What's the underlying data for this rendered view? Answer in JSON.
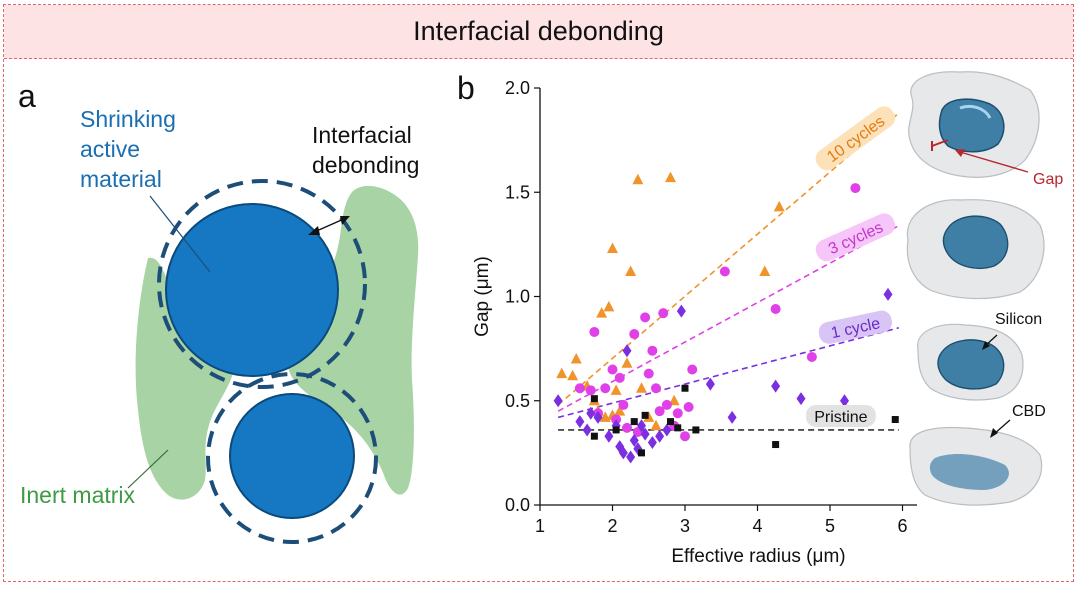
{
  "title": "Interfacial debonding",
  "panel_a": {
    "letter": "a",
    "label_active": [
      "Shrinking",
      "active",
      "material"
    ],
    "label_debond": [
      "Interfacial",
      "debonding"
    ],
    "label_matrix": "Inert matrix",
    "colors": {
      "active": "#1678c2",
      "active_stroke": "#0b4a7c",
      "matrix": "#a8d3a4",
      "dash": "#1d4e7a",
      "matrix_text": "#3e9a45",
      "active_text": "#1a6fb2"
    }
  },
  "panel_b": {
    "letter": "b",
    "side_labels": {
      "gap": "Gap",
      "silicon": "Silicon",
      "cbd": "CBD"
    },
    "gap_label_color": "#b8272e"
  },
  "chart_data": {
    "type": "scatter",
    "xlabel": "Effective radius (μm)",
    "ylabel": "Gap (μm)",
    "xlim": [
      1,
      6.2
    ],
    "ylim": [
      0,
      2.0
    ],
    "xticks": [
      "1",
      "2",
      "3",
      "4",
      "5",
      "6"
    ],
    "yticks": [
      "0.0",
      "0.5",
      "1.0",
      "1.5",
      "2.0"
    ],
    "grid": false,
    "series": [
      {
        "name": "10 cycles",
        "marker": "triangle",
        "color": "#f0932b",
        "fit": [
          [
            1.25,
            0.48
          ],
          [
            5.95,
            1.88
          ]
        ],
        "points": [
          [
            1.3,
            0.63
          ],
          [
            1.45,
            0.62
          ],
          [
            1.5,
            0.7
          ],
          [
            1.65,
            0.57
          ],
          [
            1.75,
            0.5
          ],
          [
            1.8,
            0.45
          ],
          [
            1.85,
            0.92
          ],
          [
            1.9,
            0.42
          ],
          [
            1.95,
            0.95
          ],
          [
            2.0,
            1.23
          ],
          [
            2.05,
            0.55
          ],
          [
            2.1,
            0.45
          ],
          [
            2.2,
            0.68
          ],
          [
            2.25,
            1.12
          ],
          [
            2.35,
            1.56
          ],
          [
            2.4,
            0.56
          ],
          [
            2.5,
            0.42
          ],
          [
            2.6,
            0.38
          ],
          [
            2.8,
            1.57
          ],
          [
            2.85,
            0.5
          ],
          [
            4.1,
            1.12
          ],
          [
            4.3,
            1.43
          ],
          [
            2.0,
            0.43
          ]
        ]
      },
      {
        "name": "3 cycles",
        "marker": "circle",
        "color": "#e040e8",
        "fit": [
          [
            1.25,
            0.45
          ],
          [
            5.95,
            1.34
          ]
        ],
        "points": [
          [
            1.55,
            0.56
          ],
          [
            1.7,
            0.55
          ],
          [
            1.75,
            0.83
          ],
          [
            1.8,
            0.44
          ],
          [
            1.9,
            0.56
          ],
          [
            2.0,
            0.65
          ],
          [
            2.1,
            0.61
          ],
          [
            2.15,
            0.48
          ],
          [
            2.2,
            0.37
          ],
          [
            2.3,
            0.82
          ],
          [
            2.45,
            0.9
          ],
          [
            2.5,
            0.63
          ],
          [
            2.55,
            0.74
          ],
          [
            2.6,
            0.56
          ],
          [
            2.65,
            0.45
          ],
          [
            2.7,
            0.92
          ],
          [
            2.75,
            0.48
          ],
          [
            2.85,
            0.38
          ],
          [
            2.9,
            0.44
          ],
          [
            3.0,
            0.33
          ],
          [
            3.05,
            0.47
          ],
          [
            3.1,
            0.65
          ],
          [
            3.55,
            1.12
          ],
          [
            4.25,
            0.94
          ],
          [
            4.75,
            0.71
          ],
          [
            5.35,
            1.52
          ],
          [
            2.35,
            0.35
          ],
          [
            2.05,
            0.41
          ]
        ]
      },
      {
        "name": "1 cycle",
        "marker": "diamond",
        "color": "#7b2fe0",
        "fit": [
          [
            1.25,
            0.42
          ],
          [
            5.95,
            0.85
          ]
        ],
        "points": [
          [
            1.25,
            0.5
          ],
          [
            1.55,
            0.4
          ],
          [
            1.65,
            0.36
          ],
          [
            1.7,
            0.44
          ],
          [
            1.8,
            0.42
          ],
          [
            1.95,
            0.33
          ],
          [
            2.05,
            0.38
          ],
          [
            2.1,
            0.28
          ],
          [
            2.15,
            0.25
          ],
          [
            2.2,
            0.74
          ],
          [
            2.25,
            0.23
          ],
          [
            2.3,
            0.31
          ],
          [
            2.35,
            0.27
          ],
          [
            2.45,
            0.34
          ],
          [
            2.55,
            0.3
          ],
          [
            2.65,
            0.33
          ],
          [
            2.75,
            0.36
          ],
          [
            2.95,
            0.93
          ],
          [
            3.35,
            0.58
          ],
          [
            3.65,
            0.42
          ],
          [
            4.25,
            0.57
          ],
          [
            4.6,
            0.51
          ],
          [
            5.2,
            0.5
          ],
          [
            5.8,
            1.01
          ],
          [
            2.4,
            0.38
          ]
        ]
      },
      {
        "name": "Pristine",
        "marker": "square",
        "color": "#111111",
        "fit": [
          [
            1.25,
            0.36
          ],
          [
            5.95,
            0.36
          ]
        ],
        "fit_dash_color": "#333333",
        "points": [
          [
            1.75,
            0.51
          ],
          [
            1.75,
            0.33
          ],
          [
            2.05,
            0.36
          ],
          [
            2.3,
            0.4
          ],
          [
            2.4,
            0.25
          ],
          [
            2.45,
            0.43
          ],
          [
            2.8,
            0.4
          ],
          [
            2.9,
            0.37
          ],
          [
            3.0,
            0.56
          ],
          [
            3.15,
            0.36
          ],
          [
            4.25,
            0.29
          ],
          [
            5.9,
            0.41
          ]
        ]
      }
    ]
  }
}
